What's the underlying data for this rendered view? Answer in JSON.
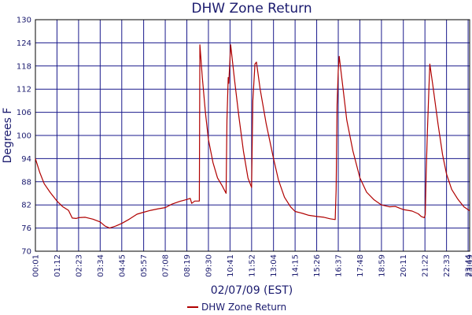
{
  "chart_data": {
    "type": "line",
    "title": "DHW Zone Return",
    "xlabel": "02/07/09 (EST)",
    "ylabel": "Degrees F",
    "ylim": [
      70,
      130
    ],
    "yticks": [
      70,
      76,
      82,
      88,
      94,
      100,
      106,
      112,
      118,
      124,
      130
    ],
    "xlim": [
      "00:01",
      "23:49"
    ],
    "xticks": [
      "00:01",
      "01:12",
      "02:23",
      "03:34",
      "04:45",
      "05:57",
      "07:08",
      "08:19",
      "09:30",
      "10:41",
      "11:52",
      "13:04",
      "14:15",
      "15:26",
      "16:37",
      "17:48",
      "18:59",
      "20:11",
      "21:22",
      "22:33",
      "23:44",
      "23:49"
    ],
    "grid": true,
    "legend_position": "bottom-center",
    "series": [
      {
        "name": "DHW Zone Return",
        "color": "#b00000",
        "points": [
          [
            "00:01",
            94.0
          ],
          [
            "00:15",
            90.5
          ],
          [
            "00:30",
            87.5
          ],
          [
            "00:50",
            85.2
          ],
          [
            "01:12",
            83.0
          ],
          [
            "01:30",
            81.6
          ],
          [
            "01:50",
            80.6
          ],
          [
            "02:02",
            78.6
          ],
          [
            "02:15",
            78.5
          ],
          [
            "02:23",
            78.7
          ],
          [
            "02:45",
            78.8
          ],
          [
            "03:10",
            78.3
          ],
          [
            "03:34",
            77.6
          ],
          [
            "03:50",
            76.5
          ],
          [
            "04:05",
            76.0
          ],
          [
            "04:25",
            76.5
          ],
          [
            "04:45",
            77.2
          ],
          [
            "05:10",
            78.3
          ],
          [
            "05:35",
            79.6
          ],
          [
            "05:57",
            80.1
          ],
          [
            "06:20",
            80.6
          ],
          [
            "06:45",
            81.0
          ],
          [
            "07:08",
            81.3
          ],
          [
            "07:30",
            82.2
          ],
          [
            "07:55",
            82.9
          ],
          [
            "08:19",
            83.4
          ],
          [
            "08:30",
            83.7
          ],
          [
            "08:35",
            82.4
          ],
          [
            "08:45",
            83.0
          ],
          [
            "09:00",
            83.0
          ],
          [
            "09:02",
            123.5
          ],
          [
            "09:10",
            115.0
          ],
          [
            "09:20",
            106.0
          ],
          [
            "09:30",
            99.0
          ],
          [
            "09:45",
            93.0
          ],
          [
            "10:00",
            89.0
          ],
          [
            "10:15",
            87.0
          ],
          [
            "10:28",
            85.0
          ],
          [
            "10:31",
            104.0
          ],
          [
            "10:35",
            115.0
          ],
          [
            "10:37",
            113.5
          ],
          [
            "10:41",
            120.0
          ],
          [
            "10:43",
            123.5
          ],
          [
            "10:55",
            115.0
          ],
          [
            "11:10",
            105.0
          ],
          [
            "11:25",
            96.0
          ],
          [
            "11:40",
            89.0
          ],
          [
            "11:52",
            86.5
          ],
          [
            "11:56",
            109.0
          ],
          [
            "12:03",
            118.5
          ],
          [
            "12:08",
            119.0
          ],
          [
            "12:20",
            112.0
          ],
          [
            "12:40",
            103.0
          ],
          [
            "13:04",
            94.0
          ],
          [
            "13:20",
            88.5
          ],
          [
            "13:40",
            84.0
          ],
          [
            "14:00",
            81.5
          ],
          [
            "14:15",
            80.3
          ],
          [
            "14:40",
            79.8
          ],
          [
            "15:00",
            79.3
          ],
          [
            "15:26",
            79.0
          ],
          [
            "15:50",
            78.8
          ],
          [
            "16:10",
            78.4
          ],
          [
            "16:27",
            78.2
          ],
          [
            "16:30",
            86.0
          ],
          [
            "16:33",
            108.0
          ],
          [
            "16:37",
            117.0
          ],
          [
            "16:40",
            120.5
          ],
          [
            "16:50",
            114.0
          ],
          [
            "17:05",
            104.0
          ],
          [
            "17:25",
            96.0
          ],
          [
            "17:48",
            89.0
          ],
          [
            "18:10",
            85.3
          ],
          [
            "18:35",
            83.3
          ],
          [
            "18:59",
            82.0
          ],
          [
            "19:25",
            81.5
          ],
          [
            "19:45",
            81.6
          ],
          [
            "20:00",
            81.1
          ],
          [
            "20:11",
            80.8
          ],
          [
            "20:40",
            80.4
          ],
          [
            "21:00",
            79.7
          ],
          [
            "21:10",
            79.0
          ],
          [
            "21:20",
            78.7
          ],
          [
            "21:23",
            79.5
          ],
          [
            "21:26",
            90.0
          ],
          [
            "21:30",
            101.0
          ],
          [
            "21:35",
            112.0
          ],
          [
            "21:38",
            118.5
          ],
          [
            "21:48",
            113.0
          ],
          [
            "22:05",
            103.0
          ],
          [
            "22:20",
            95.0
          ],
          [
            "22:33",
            90.0
          ],
          [
            "22:50",
            86.0
          ],
          [
            "23:10",
            83.5
          ],
          [
            "23:30",
            81.5
          ],
          [
            "23:49",
            80.5
          ]
        ]
      }
    ]
  }
}
